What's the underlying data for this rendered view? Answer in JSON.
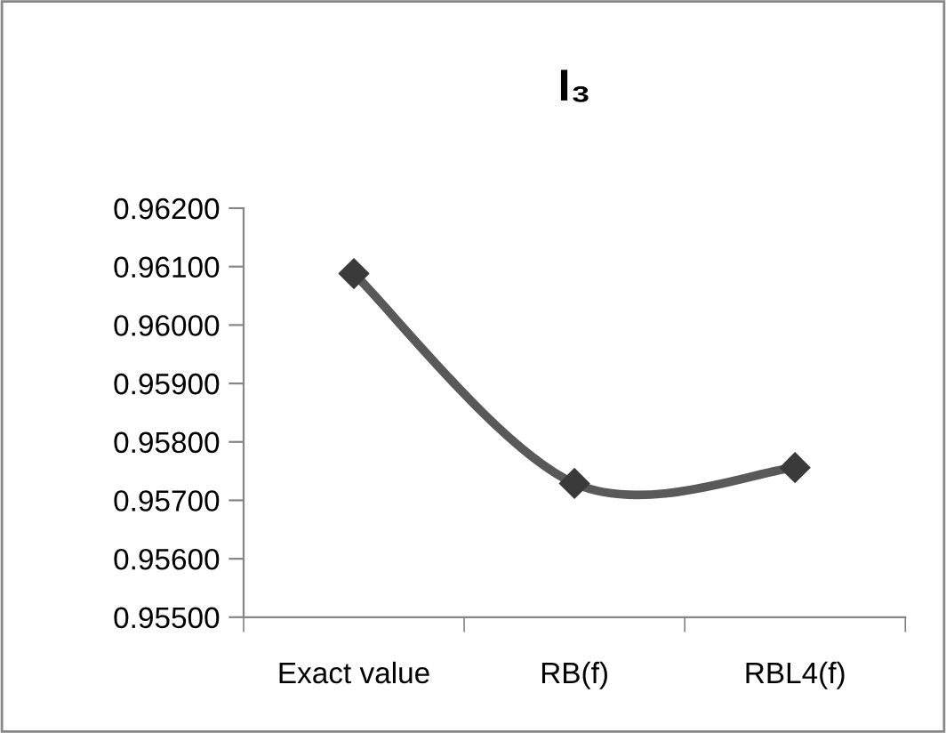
{
  "chart_data": {
    "type": "line",
    "title": "I₃",
    "categories": [
      "Exact value",
      "RB(f)",
      "RBL4(f)"
    ],
    "series": [
      {
        "color": "#595959",
        "values": [
          0.96088,
          0.95729,
          0.95756
        ]
      }
    ],
    "ylim": [
      0.955,
      0.962
    ],
    "yticks": [
      {
        "value": 0.955,
        "label": "0.95500"
      },
      {
        "value": 0.956,
        "label": "0.95600"
      },
      {
        "value": 0.957,
        "label": "0.95700"
      },
      {
        "value": 0.958,
        "label": "0.95800"
      },
      {
        "value": 0.959,
        "label": "0.95900"
      },
      {
        "value": 0.96,
        "label": "0.96000"
      },
      {
        "value": 0.961,
        "label": "0.96100"
      },
      {
        "value": 0.962,
        "label": "0.96200"
      }
    ],
    "marker": "diamond",
    "line_style": "solid",
    "grid": false,
    "legend": false
  }
}
